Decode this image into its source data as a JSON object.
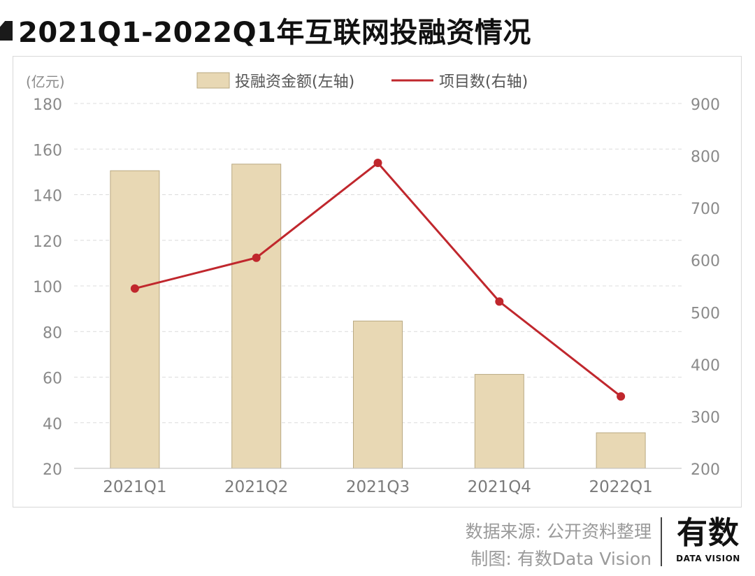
{
  "page": {
    "title": "2021Q1-2022Q1年互联网投融资情况",
    "source": "数据来源: 公开资料整理",
    "maker": "制图: 有数Data Vision",
    "logo_main": "有数",
    "logo_sub": "DATA VISION"
  },
  "chart_data": {
    "type": "bar",
    "title": "",
    "categories": [
      "2021Q1",
      "2021Q2",
      "2021Q3",
      "2021Q4",
      "2022Q1"
    ],
    "left_axis": {
      "unit": "(亿元)",
      "range": [
        20,
        180
      ],
      "ticks": [
        20,
        40,
        60,
        80,
        100,
        120,
        140,
        160,
        180
      ]
    },
    "right_axis": {
      "unit": "",
      "range": [
        200,
        900
      ],
      "ticks": [
        200,
        300,
        400,
        500,
        600,
        700,
        800,
        900
      ]
    },
    "grid": true,
    "legend_position": "top-center",
    "series": [
      {
        "name": "投融资金额(左轴)",
        "type": "bar",
        "axis": "left",
        "color": "#e8d8b4",
        "values": [
          150.5,
          153.4,
          84.6,
          61.2,
          35.6
        ]
      },
      {
        "name": "项目数(右轴)",
        "type": "line",
        "axis": "right",
        "color": "#c0272d",
        "values": [
          545,
          604,
          786,
          520,
          338
        ]
      }
    ]
  }
}
